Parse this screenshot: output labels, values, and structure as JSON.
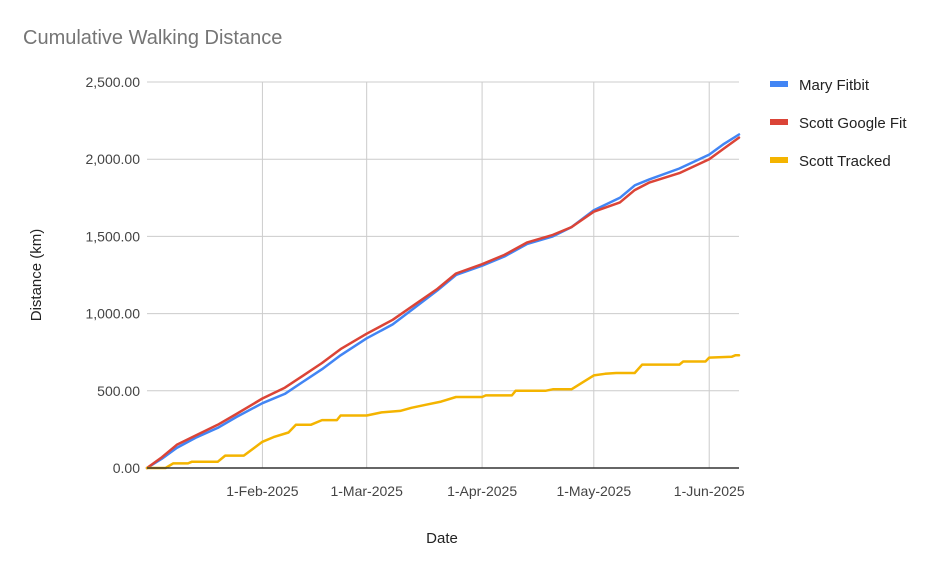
{
  "chart_data": {
    "type": "line",
    "title": "Cumulative Walking Distance",
    "xlabel": "Date",
    "ylabel": "Distance (km)",
    "x_range": [
      "2025-01-01",
      "2025-06-09"
    ],
    "ylim": [
      0,
      2500
    ],
    "y_ticks": [
      0,
      500,
      1000,
      1500,
      2000,
      2500
    ],
    "y_tick_labels": [
      "0.00",
      "500.00",
      "1,000.00",
      "1,500.00",
      "2,000.00",
      "2,500.00"
    ],
    "x_ticks": [
      "2025-02-01",
      "2025-03-01",
      "2025-04-01",
      "2025-05-01",
      "2025-06-01"
    ],
    "x_tick_labels": [
      "1-Feb-2025",
      "1-Mar-2025",
      "1-Apr-2025",
      "1-May-2025",
      "1-Jun-2025"
    ],
    "grid": true,
    "legend_position": "right",
    "series": [
      {
        "name": "Mary Fitbit",
        "color": "#4285F4",
        "points": [
          [
            "2025-01-01",
            0
          ],
          [
            "2025-01-05",
            60
          ],
          [
            "2025-01-09",
            130
          ],
          [
            "2025-01-14",
            195
          ],
          [
            "2025-01-20",
            260
          ],
          [
            "2025-01-25",
            330
          ],
          [
            "2025-02-01",
            420
          ],
          [
            "2025-02-07",
            480
          ],
          [
            "2025-02-12",
            560
          ],
          [
            "2025-02-17",
            640
          ],
          [
            "2025-02-22",
            730
          ],
          [
            "2025-03-01",
            840
          ],
          [
            "2025-03-08",
            930
          ],
          [
            "2025-03-14",
            1040
          ],
          [
            "2025-03-20",
            1150
          ],
          [
            "2025-03-25",
            1250
          ],
          [
            "2025-04-01",
            1310
          ],
          [
            "2025-04-07",
            1370
          ],
          [
            "2025-04-13",
            1450
          ],
          [
            "2025-04-20",
            1500
          ],
          [
            "2025-04-25",
            1560
          ],
          [
            "2025-05-01",
            1670
          ],
          [
            "2025-05-08",
            1750
          ],
          [
            "2025-05-12",
            1830
          ],
          [
            "2025-05-16",
            1870
          ],
          [
            "2025-05-24",
            1940
          ],
          [
            "2025-06-01",
            2030
          ],
          [
            "2025-06-05",
            2100
          ],
          [
            "2025-06-09",
            2160
          ]
        ]
      },
      {
        "name": "Scott Google Fit",
        "color": "#DB4437",
        "points": [
          [
            "2025-01-01",
            0
          ],
          [
            "2025-01-05",
            70
          ],
          [
            "2025-01-09",
            150
          ],
          [
            "2025-01-14",
            210
          ],
          [
            "2025-01-20",
            280
          ],
          [
            "2025-01-25",
            350
          ],
          [
            "2025-02-01",
            450
          ],
          [
            "2025-02-07",
            520
          ],
          [
            "2025-02-12",
            600
          ],
          [
            "2025-02-17",
            680
          ],
          [
            "2025-02-22",
            770
          ],
          [
            "2025-03-01",
            870
          ],
          [
            "2025-03-08",
            960
          ],
          [
            "2025-03-14",
            1060
          ],
          [
            "2025-03-20",
            1160
          ],
          [
            "2025-03-25",
            1260
          ],
          [
            "2025-04-01",
            1320
          ],
          [
            "2025-04-07",
            1380
          ],
          [
            "2025-04-13",
            1460
          ],
          [
            "2025-04-20",
            1510
          ],
          [
            "2025-04-25",
            1560
          ],
          [
            "2025-05-01",
            1660
          ],
          [
            "2025-05-08",
            1720
          ],
          [
            "2025-05-12",
            1800
          ],
          [
            "2025-05-16",
            1850
          ],
          [
            "2025-05-24",
            1910
          ],
          [
            "2025-06-01",
            2000
          ],
          [
            "2025-06-05",
            2070
          ],
          [
            "2025-06-09",
            2140
          ]
        ]
      },
      {
        "name": "Scott Tracked",
        "color": "#F4B400",
        "points": [
          [
            "2025-01-01",
            0
          ],
          [
            "2025-01-06",
            0
          ],
          [
            "2025-01-08",
            30
          ],
          [
            "2025-01-12",
            30
          ],
          [
            "2025-01-13",
            40
          ],
          [
            "2025-01-20",
            40
          ],
          [
            "2025-01-22",
            80
          ],
          [
            "2025-01-27",
            80
          ],
          [
            "2025-02-01",
            170
          ],
          [
            "2025-02-04",
            200
          ],
          [
            "2025-02-08",
            230
          ],
          [
            "2025-02-10",
            280
          ],
          [
            "2025-02-14",
            280
          ],
          [
            "2025-02-17",
            310
          ],
          [
            "2025-02-21",
            310
          ],
          [
            "2025-02-22",
            340
          ],
          [
            "2025-03-01",
            340
          ],
          [
            "2025-03-05",
            360
          ],
          [
            "2025-03-10",
            370
          ],
          [
            "2025-03-13",
            390
          ],
          [
            "2025-03-17",
            410
          ],
          [
            "2025-03-21",
            430
          ],
          [
            "2025-03-25",
            460
          ],
          [
            "2025-04-01",
            460
          ],
          [
            "2025-04-02",
            470
          ],
          [
            "2025-04-09",
            470
          ],
          [
            "2025-04-10",
            500
          ],
          [
            "2025-04-18",
            500
          ],
          [
            "2025-04-20",
            510
          ],
          [
            "2025-04-25",
            510
          ],
          [
            "2025-05-01",
            600
          ],
          [
            "2025-05-04",
            610
          ],
          [
            "2025-05-07",
            615
          ],
          [
            "2025-05-12",
            615
          ],
          [
            "2025-05-14",
            670
          ],
          [
            "2025-05-24",
            670
          ],
          [
            "2025-05-25",
            690
          ],
          [
            "2025-05-31",
            690
          ],
          [
            "2025-06-01",
            715
          ],
          [
            "2025-06-07",
            720
          ],
          [
            "2025-06-08",
            730
          ],
          [
            "2025-06-09",
            730
          ]
        ]
      }
    ]
  }
}
